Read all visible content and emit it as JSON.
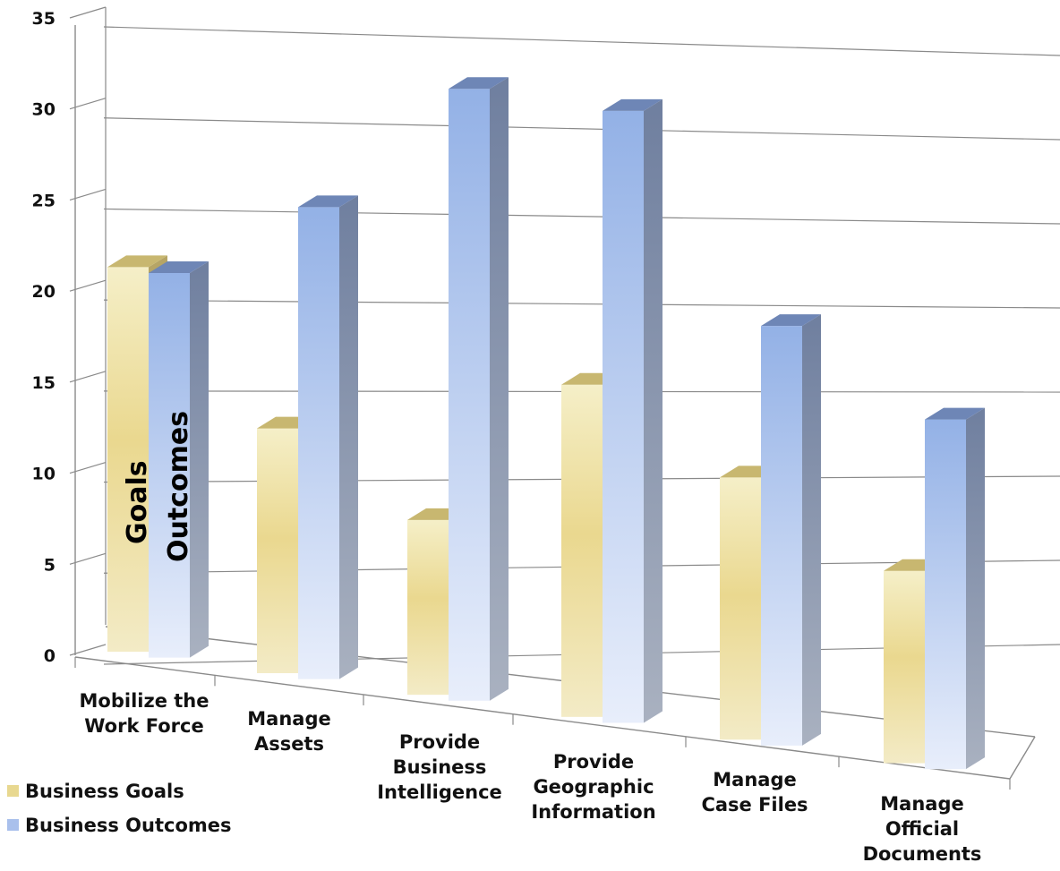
{
  "chart_data": {
    "type": "bar",
    "categories": [
      [
        "Mobilize the",
        "Work Force"
      ],
      [
        "Manage",
        "Assets"
      ],
      [
        "Provide",
        "Business",
        "Intelligence"
      ],
      [
        "Provide",
        "Geographic",
        "Information"
      ],
      [
        "Manage",
        "Case Files"
      ],
      [
        "Manage",
        "Official",
        "Documents"
      ]
    ],
    "series": [
      {
        "name": "Business Goals",
        "values": [
          22,
          14,
          10,
          19,
          15,
          11
        ]
      },
      {
        "name": "Business Outcomes",
        "values": [
          22,
          27,
          35,
          35,
          24,
          20
        ]
      }
    ],
    "ylim": [
      0,
      35
    ],
    "yticks": [
      "0",
      "5",
      "10",
      "15",
      "20",
      "25",
      "30",
      "35"
    ],
    "grid": true,
    "legend": "bottom-left",
    "annotations": [
      "Goals",
      "Outcomes"
    ],
    "colors": {
      "goals_light": "#f4eec6",
      "goals_dark": "#e8d890",
      "goals_side": "#c9b978",
      "outcomes_light": "#e6ecfa",
      "outcomes_dark": "#93b1e6",
      "outcomes_side": "#7f8faf",
      "grid": "#8a8a8a"
    }
  }
}
